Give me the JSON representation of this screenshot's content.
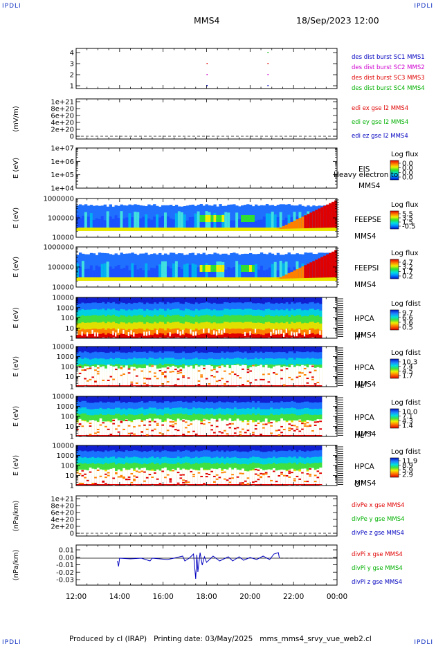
{
  "corner_label": "IPDLI",
  "header": {
    "spacecraft": "MMS4",
    "date": "18/Sep/2023 12:00"
  },
  "footer": "Produced by cl (IRAP)   Printing date: 03/May/2025   mms_mms4_srvy_vue_web2.cl",
  "colors": {
    "red": "#e00000",
    "green": "#00b000",
    "blue": "#0000c0",
    "magenta": "#d000d0"
  },
  "chart_data": {
    "type": "multi-panel",
    "x_ticks": [
      "12:00",
      "14:00",
      "16:00",
      "18:00",
      "20:00",
      "22:00",
      "00:00"
    ],
    "x_range_hours": [
      12,
      24
    ],
    "data_end_hour": 23.3,
    "panels": [
      {
        "id": "burst",
        "type": "scatter",
        "ylabel": "",
        "yticks": [
          "4",
          "3",
          "2",
          "1"
        ],
        "legend": [
          {
            "text": "des dist burst SC1 MMS1",
            "color": "#0000c0"
          },
          {
            "text": "des dist burst SC2 MMS2",
            "color": "#d000d0"
          },
          {
            "text": "des dist burst SC3 MMS3",
            "color": "#e00000"
          },
          {
            "text": "des dist burst SC4 MMS4",
            "color": "#00b000"
          }
        ],
        "points": [
          {
            "t": 18.0,
            "sc": 1
          },
          {
            "t": 18.0,
            "sc": 2
          },
          {
            "t": 18.0,
            "sc": 3
          },
          {
            "t": 20.8,
            "sc": 1
          },
          {
            "t": 20.8,
            "sc": 2
          },
          {
            "t": 20.8,
            "sc": 3
          },
          {
            "t": 20.8,
            "sc": 4
          }
        ]
      },
      {
        "id": "edi",
        "type": "line",
        "ylabel": "(mV/m)",
        "yticks": [
          "1e+21",
          "8e+20",
          "6e+20",
          "4e+20",
          "2e+20",
          "0"
        ],
        "legend": [
          {
            "text": "edi ex gse l2 MMS4",
            "color": "#e00000"
          },
          {
            "text": "edi ey gse l2 MMS4",
            "color": "#00b000"
          },
          {
            "text": "edi ez gse l2 MMS4",
            "color": "#0000c0"
          }
        ]
      },
      {
        "id": "eis",
        "type": "heatmap",
        "ylabel": "E (eV)",
        "yticks": [
          "1e+07",
          "1e+06",
          "1e+05",
          "1e+04"
        ],
        "instrument": [
          "EIS",
          "MMS4"
        ],
        "overlay_text": "Heavy electron to",
        "cbar": {
          "title": "Log flux",
          "ticks": [
            "0.0",
            "0.0",
            "0.0",
            "0.0"
          ]
        }
      },
      {
        "id": "feepse",
        "type": "heatmap",
        "ylabel": "E (eV)",
        "yticks": [
          "1000000",
          "100000",
          "10000"
        ],
        "instrument": [
          "FEEPSE",
          "MMS4"
        ],
        "cbar": {
          "title": "Log flux",
          "ticks": [
            "5.5",
            "3.5",
            "1.5",
            "-0.5"
          ]
        }
      },
      {
        "id": "feepsi",
        "type": "heatmap",
        "ylabel": "E (eV)",
        "yticks": [
          "1000000",
          "100000",
          "10000"
        ],
        "instrument": [
          "FEEPSI",
          "MMS4"
        ],
        "cbar": {
          "title": "Log flux",
          "ticks": [
            "4.7",
            "3.2",
            "1.7",
            "0.2"
          ]
        }
      },
      {
        "id": "hpca_h",
        "type": "heatmap",
        "ylabel": "E (eV)",
        "yticks": [
          "10000",
          "1000",
          "100",
          "10",
          "1"
        ],
        "instrument": [
          "HPCA",
          "MMS4"
        ],
        "species": "H",
        "species_sup": "+",
        "cbar": {
          "title": "Log fdist",
          "ticks": [
            "9.7",
            "6.6",
            "3.6",
            "0.5"
          ]
        }
      },
      {
        "id": "hpca_he",
        "type": "heatmap",
        "ylabel": "E (eV)",
        "yticks": [
          "10000",
          "1000",
          "100",
          "10",
          "1"
        ],
        "instrument": [
          "HPCA",
          "MMS4"
        ],
        "species": "He",
        "species_sup": "+",
        "cbar": {
          "title": "Log fdist",
          "ticks": [
            "10.3",
            "7.4",
            "4.5",
            "1.7"
          ]
        }
      },
      {
        "id": "hpca_hepp",
        "type": "heatmap",
        "ylabel": "E (eV)",
        "yticks": [
          "10000",
          "1000",
          "100",
          "10",
          "1"
        ],
        "instrument": [
          "HPCA",
          "MMS4"
        ],
        "species": "He",
        "species_sup": "++",
        "cbar": {
          "title": "Log fdist",
          "ticks": [
            "10.0",
            "7.1",
            "4.3",
            "1.4"
          ]
        }
      },
      {
        "id": "hpca_o",
        "type": "heatmap",
        "ylabel": "E (eV)",
        "yticks": [
          "10000",
          "1000",
          "100",
          "10",
          "1"
        ],
        "instrument": [
          "HPCA",
          "MMS4"
        ],
        "species": "O",
        "species_sup": "+",
        "cbar": {
          "title": "Log fdist",
          "ticks": [
            "11.9",
            "8.9",
            "5.9",
            "2.9"
          ]
        }
      },
      {
        "id": "divpe",
        "type": "line",
        "ylabel": "(nPa/km)",
        "yticks": [
          "1e+21",
          "8e+20",
          "6e+20",
          "4e+20",
          "2e+20",
          "0"
        ],
        "legend": [
          {
            "text": "divPe x gse MMS4",
            "color": "#e00000"
          },
          {
            "text": "divPe y gse MMS4",
            "color": "#00b000"
          },
          {
            "text": "divPe z gse MMS4",
            "color": "#0000c0"
          }
        ]
      },
      {
        "id": "divpi",
        "type": "line",
        "ylabel": "(nPa/km)",
        "yticks": [
          "0.01",
          "0.00",
          "-0.01",
          "-0.02",
          "-0.03"
        ],
        "ylim": [
          -0.035,
          0.015
        ],
        "legend": [
          {
            "text": "divPi x gse MMS4",
            "color": "#e00000"
          },
          {
            "text": "divPi y gse MMS4",
            "color": "#00b000"
          },
          {
            "text": "divPi z gse MMS4",
            "color": "#0000c0"
          }
        ],
        "series_z": [
          [
            13.9,
            -0.004
          ],
          [
            13.95,
            -0.012
          ],
          [
            14.0,
            0.0
          ],
          [
            14.5,
            -0.001
          ],
          [
            15.0,
            0.0
          ],
          [
            15.4,
            -0.004
          ],
          [
            15.5,
            0.0
          ],
          [
            16.2,
            -0.002
          ],
          [
            16.5,
            0.0
          ],
          [
            16.9,
            0.003
          ],
          [
            17.0,
            -0.004
          ],
          [
            17.2,
            0.0
          ],
          [
            17.4,
            0.006
          ],
          [
            17.5,
            -0.03
          ],
          [
            17.55,
            0.005
          ],
          [
            17.6,
            -0.02
          ],
          [
            17.7,
            0.008
          ],
          [
            17.8,
            -0.01
          ],
          [
            17.9,
            0.002
          ],
          [
            18.0,
            -0.006
          ],
          [
            18.3,
            0.003
          ],
          [
            18.6,
            -0.004
          ],
          [
            19.0,
            0.002
          ],
          [
            19.2,
            -0.004
          ],
          [
            19.5,
            0.002
          ],
          [
            19.7,
            -0.003
          ],
          [
            20.0,
            0.001
          ],
          [
            20.3,
            -0.002
          ],
          [
            20.6,
            0.003
          ],
          [
            20.9,
            -0.002
          ],
          [
            21.1,
            0.006
          ],
          [
            21.3,
            0.008
          ],
          [
            21.35,
            0.0
          ]
        ]
      }
    ]
  }
}
